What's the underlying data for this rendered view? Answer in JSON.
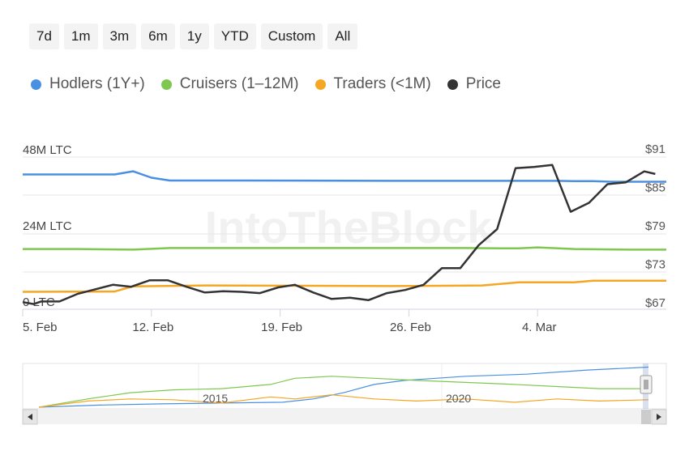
{
  "range_buttons": [
    "7d",
    "1m",
    "3m",
    "6m",
    "1y",
    "YTD",
    "Custom",
    "All"
  ],
  "legend": [
    {
      "label": "Hodlers (1Y+)",
      "color": "#4a90e2"
    },
    {
      "label": "Cruisers (1–12M)",
      "color": "#7ec850"
    },
    {
      "label": "Traders (<1M)",
      "color": "#f5a623"
    },
    {
      "label": "Price",
      "color": "#333333"
    }
  ],
  "watermark": "IntoTheBlock",
  "chart_data": {
    "type": "line",
    "x_ticks": [
      "5. Feb",
      "12. Feb",
      "19. Feb",
      "26. Feb",
      "4. Mar"
    ],
    "y_left_ticks": [
      "48M LTC",
      "24M LTC",
      "0 LTC"
    ],
    "y_left_range": [
      0,
      48
    ],
    "y_right_ticks": [
      "$91",
      "$85",
      "$79",
      "$73",
      "$67"
    ],
    "y_right_range": [
      67,
      91
    ],
    "x_range": [
      0,
      35
    ],
    "series": [
      {
        "name": "Hodlers (1Y+)",
        "axis": "left",
        "color": "#4a90e2",
        "points": [
          [
            0,
            42.5
          ],
          [
            5,
            42.5
          ],
          [
            6,
            43.5
          ],
          [
            7,
            41.5
          ],
          [
            8,
            40.6
          ],
          [
            12,
            40.6
          ],
          [
            20,
            40.5
          ],
          [
            26,
            40.5
          ],
          [
            29,
            40.5
          ],
          [
            30,
            40.4
          ],
          [
            31,
            40.4
          ],
          [
            32,
            40.2
          ],
          [
            35,
            40.2
          ]
        ]
      },
      {
        "name": "Cruisers (1–12M)",
        "axis": "left",
        "color": "#7ec850",
        "points": [
          [
            0,
            19
          ],
          [
            3,
            19
          ],
          [
            6,
            18.8
          ],
          [
            8,
            19.3
          ],
          [
            12,
            19.3
          ],
          [
            18,
            19.3
          ],
          [
            24,
            19.3
          ],
          [
            26,
            19.2
          ],
          [
            27,
            19.2
          ],
          [
            28,
            19.5
          ],
          [
            30,
            19
          ],
          [
            33,
            18.8
          ],
          [
            35,
            18.8
          ]
        ]
      },
      {
        "name": "Traders (<1M)",
        "axis": "left",
        "color": "#f5a623",
        "points": [
          [
            0,
            5.5
          ],
          [
            5,
            5.6
          ],
          [
            6,
            7.2
          ],
          [
            10,
            7.5
          ],
          [
            20,
            7.3
          ],
          [
            25,
            7.5
          ],
          [
            27,
            8.5
          ],
          [
            30,
            8.5
          ],
          [
            31,
            9
          ],
          [
            35,
            9
          ]
        ]
      },
      {
        "name": "Price",
        "axis": "right",
        "color": "#333333",
        "points": [
          [
            0,
            67.1
          ],
          [
            0.6,
            66.8
          ],
          [
            1,
            67.2
          ],
          [
            2,
            67.2
          ],
          [
            3,
            68.4
          ],
          [
            4.9,
            69.8
          ],
          [
            5.9,
            69.5
          ],
          [
            6.9,
            70.5
          ],
          [
            7.9,
            70.5
          ],
          [
            8.9,
            69.5
          ],
          [
            9.9,
            68.6
          ],
          [
            10.9,
            68.8
          ],
          [
            11.9,
            68.7
          ],
          [
            12.9,
            68.5
          ],
          [
            13.9,
            69.4
          ],
          [
            14.8,
            69.8
          ],
          [
            15.8,
            68.6
          ],
          [
            16.8,
            67.6
          ],
          [
            17.8,
            67.8
          ],
          [
            18.8,
            67.4
          ],
          [
            19.8,
            68.5
          ],
          [
            20.8,
            69
          ],
          [
            21.8,
            69.8
          ],
          [
            22.8,
            72.4
          ],
          [
            23.8,
            72.4
          ],
          [
            24.8,
            76
          ],
          [
            25.8,
            78.5
          ],
          [
            26.8,
            88
          ],
          [
            27.8,
            88.2
          ],
          [
            28.8,
            88.5
          ],
          [
            29.8,
            81.2
          ],
          [
            30.8,
            82.6
          ],
          [
            31.8,
            85.5
          ],
          [
            32.8,
            85.8
          ],
          [
            33.8,
            87.5
          ],
          [
            34.4,
            87.1
          ]
        ]
      }
    ],
    "navigator": {
      "x_ticks": [
        "2015",
        "2020"
      ],
      "series": [
        {
          "name": "Hodlers (1Y+)",
          "color": "#4a90e2",
          "points": [
            [
              0,
              0
            ],
            [
              0.1,
              0.05
            ],
            [
              0.2,
              0.08
            ],
            [
              0.3,
              0.1
            ],
            [
              0.4,
              0.12
            ],
            [
              0.45,
              0.2
            ],
            [
              0.5,
              0.35
            ],
            [
              0.55,
              0.55
            ],
            [
              0.6,
              0.65
            ],
            [
              0.7,
              0.75
            ],
            [
              0.8,
              0.8
            ],
            [
              0.9,
              0.9
            ],
            [
              1,
              0.97
            ]
          ]
        },
        {
          "name": "Cruisers (1–12M)",
          "color": "#7ec850",
          "points": [
            [
              0,
              0
            ],
            [
              0.08,
              0.2
            ],
            [
              0.15,
              0.35
            ],
            [
              0.22,
              0.42
            ],
            [
              0.3,
              0.45
            ],
            [
              0.38,
              0.55
            ],
            [
              0.42,
              0.7
            ],
            [
              0.48,
              0.75
            ],
            [
              0.55,
              0.7
            ],
            [
              0.62,
              0.65
            ],
            [
              0.7,
              0.6
            ],
            [
              0.78,
              0.55
            ],
            [
              0.85,
              0.5
            ],
            [
              0.92,
              0.45
            ],
            [
              1,
              0.45
            ]
          ]
        },
        {
          "name": "Traders (<1M)",
          "color": "#f5a623",
          "points": [
            [
              0,
              0
            ],
            [
              0.08,
              0.15
            ],
            [
              0.15,
              0.2
            ],
            [
              0.22,
              0.18
            ],
            [
              0.3,
              0.1
            ],
            [
              0.38,
              0.25
            ],
            [
              0.42,
              0.2
            ],
            [
              0.48,
              0.3
            ],
            [
              0.55,
              0.2
            ],
            [
              0.62,
              0.15
            ],
            [
              0.7,
              0.2
            ],
            [
              0.78,
              0.12
            ],
            [
              0.85,
              0.2
            ],
            [
              0.92,
              0.15
            ],
            [
              1,
              0.18
            ]
          ]
        }
      ]
    }
  }
}
